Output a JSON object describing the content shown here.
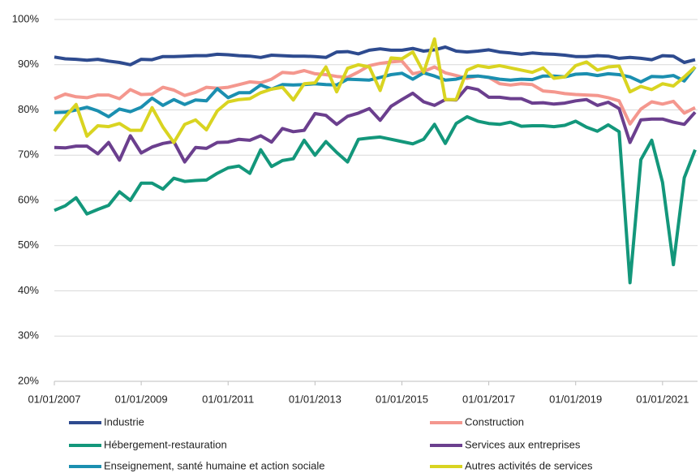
{
  "chart_data": {
    "type": "line",
    "categories": [
      "01/01/2007",
      null,
      null,
      null,
      null,
      null,
      null,
      null,
      "01/01/2009",
      null,
      null,
      null,
      null,
      null,
      null,
      null,
      "01/01/2011",
      null,
      null,
      null,
      null,
      null,
      null,
      null,
      "01/01/2013",
      null,
      null,
      null,
      null,
      null,
      null,
      null,
      "01/01/2015",
      null,
      null,
      null,
      null,
      null,
      null,
      null,
      "01/01/2017",
      null,
      null,
      null,
      null,
      null,
      null,
      null,
      "01/01/2019",
      null,
      null,
      null,
      null,
      null,
      null,
      null,
      "01/01/2021",
      null,
      null,
      null
    ],
    "ylim": [
      20,
      100
    ],
    "yticks": [
      {
        "value": 20,
        "label": "20%"
      },
      {
        "value": 30,
        "label": "30%"
      },
      {
        "value": 40,
        "label": "40%"
      },
      {
        "value": 50,
        "label": "50%"
      },
      {
        "value": 60,
        "label": "60%"
      },
      {
        "value": 70,
        "label": "70%"
      },
      {
        "value": 80,
        "label": "80%"
      },
      {
        "value": 90,
        "label": "90%"
      },
      {
        "value": 100,
        "label": "100%"
      }
    ],
    "grid": true,
    "series": [
      {
        "name": "Industrie",
        "color": "#2e4b8f",
        "values": [
          91.7,
          91.3,
          91.2,
          91.0,
          91.2,
          90.8,
          90.5,
          90.0,
          91.2,
          91.1,
          91.8,
          91.8,
          91.9,
          92.0,
          92.0,
          92.3,
          92.2,
          92.0,
          91.9,
          91.6,
          92.1,
          92.0,
          91.9,
          91.9,
          91.8,
          91.6,
          92.8,
          92.9,
          92.4,
          93.2,
          93.5,
          93.2,
          93.2,
          93.6,
          93.0,
          93.3,
          93.9,
          93.0,
          92.8,
          93.0,
          93.3,
          92.8,
          92.6,
          92.3,
          92.6,
          92.4,
          92.3,
          92.1,
          91.8,
          91.8,
          92.0,
          91.9,
          91.4,
          91.6,
          91.4,
          91.1,
          92.0,
          91.9,
          90.5,
          91.1
        ]
      },
      {
        "name": "Construction",
        "color": "#f4978e",
        "values": [
          82.5,
          83.5,
          82.9,
          82.7,
          83.3,
          83.3,
          82.5,
          84.5,
          83.4,
          83.5,
          85.0,
          84.4,
          83.2,
          83.9,
          85.0,
          84.8,
          85.0,
          85.6,
          86.2,
          86.0,
          86.8,
          88.3,
          88.1,
          88.7,
          88.0,
          87.8,
          87.4,
          87.2,
          88.4,
          89.8,
          90.3,
          90.6,
          90.8,
          88.0,
          88.5,
          89.5,
          88.2,
          87.6,
          87.0,
          87.5,
          87.2,
          85.8,
          85.5,
          85.8,
          85.6,
          84.2,
          84.0,
          83.6,
          83.4,
          83.3,
          83.2,
          82.7,
          82.0,
          76.9,
          80.2,
          81.8,
          81.3,
          81.9,
          79.3,
          80.5
        ]
      },
      {
        "name": "Hébergement-restauration",
        "color": "#13977b",
        "values": [
          57.8,
          58.8,
          60.6,
          57.0,
          58.0,
          58.9,
          61.9,
          60.0,
          63.8,
          63.8,
          62.5,
          64.9,
          64.2,
          64.4,
          64.5,
          66.0,
          67.2,
          67.6,
          66.0,
          71.2,
          67.5,
          68.8,
          69.2,
          73.3,
          70.0,
          73.0,
          70.6,
          68.5,
          73.5,
          73.8,
          74.0,
          73.5,
          73.0,
          72.5,
          73.5,
          76.8,
          72.6,
          77.0,
          78.5,
          77.5,
          77.0,
          76.8,
          77.3,
          76.4,
          76.5,
          76.5,
          76.3,
          76.6,
          77.5,
          76.2,
          75.3,
          76.7,
          75.2,
          41.8,
          69.0,
          73.3,
          64.0,
          45.8,
          65.0,
          71.2
        ]
      },
      {
        "name": "Services aux entreprises",
        "color": "#6b3f8e",
        "values": [
          71.7,
          71.6,
          72.0,
          72.0,
          70.3,
          72.8,
          68.9,
          74.3,
          70.5,
          71.8,
          72.6,
          73.0,
          68.5,
          71.7,
          71.5,
          72.8,
          72.9,
          73.5,
          73.3,
          74.3,
          72.9,
          75.9,
          75.2,
          75.5,
          79.2,
          78.8,
          76.8,
          78.6,
          79.3,
          80.3,
          77.7,
          80.8,
          82.3,
          83.7,
          81.8,
          81.0,
          82.3,
          82.2,
          85.0,
          84.5,
          82.8,
          82.8,
          82.5,
          82.5,
          81.5,
          81.6,
          81.3,
          81.5,
          82.0,
          82.3,
          81.0,
          81.7,
          80.3,
          72.8,
          77.8,
          78.0,
          78.0,
          77.3,
          76.8,
          79.5
        ]
      },
      {
        "name": "Enseignement, santé humaine et action sociale",
        "color": "#1b8fb0",
        "values": [
          79.4,
          79.5,
          80.0,
          80.6,
          79.8,
          78.5,
          80.2,
          79.6,
          80.6,
          82.6,
          81.0,
          82.3,
          81.2,
          82.2,
          82.0,
          84.7,
          82.7,
          83.8,
          83.8,
          85.5,
          84.6,
          85.6,
          85.5,
          85.6,
          85.8,
          85.6,
          85.5,
          86.8,
          86.7,
          86.6,
          87.2,
          87.8,
          88.1,
          86.8,
          88.2,
          87.5,
          86.6,
          86.8,
          87.4,
          87.5,
          87.2,
          86.8,
          86.6,
          86.8,
          86.7,
          87.5,
          87.5,
          87.3,
          87.9,
          88.0,
          87.6,
          88.0,
          87.8,
          87.3,
          86.2,
          87.4,
          87.3,
          87.6,
          86.4,
          89.5
        ]
      },
      {
        "name": "Autres activités de services",
        "color": "#d9d421",
        "values": [
          75.3,
          78.5,
          81.2,
          74.2,
          76.5,
          76.3,
          77.0,
          75.5,
          75.5,
          80.5,
          76.2,
          72.8,
          76.8,
          77.8,
          75.6,
          79.8,
          81.8,
          82.3,
          82.5,
          83.8,
          84.6,
          85.0,
          82.2,
          85.8,
          86.0,
          89.5,
          84.0,
          89.2,
          90.0,
          89.5,
          84.3,
          91.5,
          91.3,
          92.8,
          88.3,
          95.7,
          82.3,
          82.3,
          88.8,
          89.8,
          89.4,
          89.8,
          89.3,
          88.8,
          88.3,
          89.3,
          87.0,
          87.3,
          89.8,
          90.6,
          88.8,
          89.5,
          89.7,
          84.0,
          85.2,
          84.5,
          85.8,
          85.3,
          87.3,
          89.5
        ]
      }
    ]
  }
}
